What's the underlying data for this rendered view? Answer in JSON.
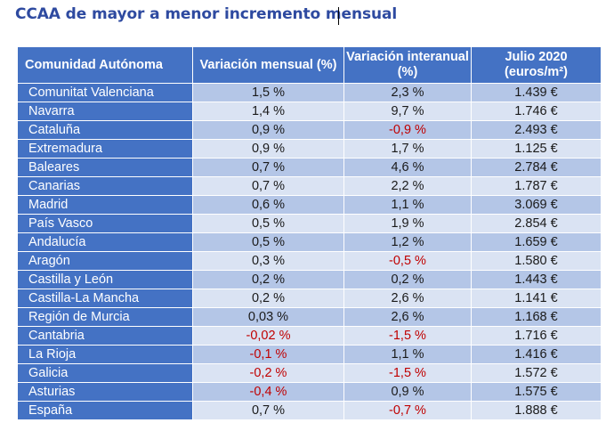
{
  "title": "CCAA de mayor a menor incremento mensual",
  "table": {
    "headers": [
      "Comunidad Autónoma",
      "Variación mensual (%)",
      "Variación interanual (%)",
      "Julio 2020 (euros/m²)"
    ],
    "rows": [
      [
        "Comunitat Valenciana",
        "1,5 %",
        "2,3 %",
        "1.439 €"
      ],
      [
        "Navarra",
        "1,4 %",
        "9,7 %",
        "1.746 €"
      ],
      [
        "Cataluña",
        "0,9 %",
        "-0,9 %",
        "2.493 €"
      ],
      [
        "Extremadura",
        "0,9 %",
        "1,7 %",
        "1.125 €"
      ],
      [
        "Baleares",
        "0,7 %",
        "4,6 %",
        "2.784 €"
      ],
      [
        "Canarias",
        "0,7 %",
        "2,2 %",
        "1.787 €"
      ],
      [
        "Madrid",
        "0,6 %",
        "1,1 %",
        "3.069 €"
      ],
      [
        "País Vasco",
        "0,5 %",
        "1,9 %",
        "2.854 €"
      ],
      [
        "Andalucía",
        "0,5 %",
        "1,2 %",
        "1.659 €"
      ],
      [
        "Aragón",
        "0,3 %",
        "-0,5 %",
        "1.580 €"
      ],
      [
        "Castilla y León",
        "0,2 %",
        "0,2 %",
        "1.443 €"
      ],
      [
        "Castilla-La Mancha",
        "0,2 %",
        "2,6 %",
        "1.141 €"
      ],
      [
        "Región de Murcia",
        "0,03 %",
        "2,6 %",
        "1.168 €"
      ],
      [
        "Cantabria",
        "-0,02 %",
        "-1,5 %",
        "1.716 €"
      ],
      [
        "La Rioja",
        "-0,1 %",
        "1,1 %",
        "1.416 €"
      ],
      [
        "Galicia",
        "-0,2 %",
        "-1,5 %",
        "1.572 €"
      ],
      [
        "Asturias",
        "-0,4 %",
        "0,9 %",
        "1.575 €"
      ],
      [
        "España",
        "0,7 %",
        "-0,7 %",
        "1.888 €"
      ]
    ]
  },
  "colors": {
    "title": "#2e4aa0",
    "header_bg": "#4472c4",
    "row_band_dark": "#b4c6e7",
    "row_band_light": "#dae3f3",
    "negative": "#c00000"
  }
}
